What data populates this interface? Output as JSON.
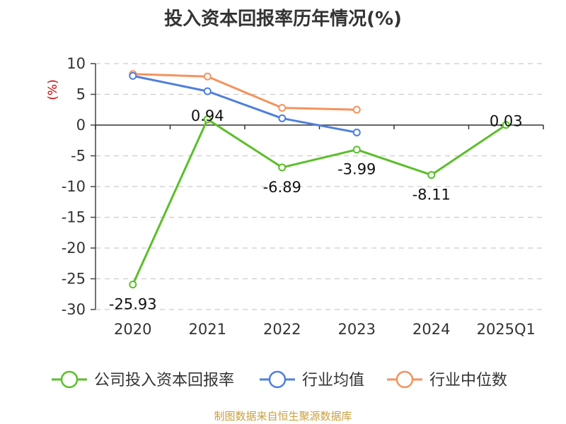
{
  "title": "投入资本回报率历年情况(%)",
  "source": "制图数据来自恒生聚源数据库",
  "chart_data": {
    "type": "line",
    "title": "投入资本回报率历年情况(%)",
    "ylabel": "(%)",
    "categories": [
      "2020",
      "2021",
      "2022",
      "2023",
      "2024",
      "2025Q1"
    ],
    "ylim": [
      -30,
      10
    ],
    "yticks": [
      10,
      5,
      0,
      -5,
      -10,
      -15,
      -20,
      -25,
      -30
    ],
    "grid": true,
    "legend_position": "bottom",
    "series": [
      {
        "name": "公司投入资本回报率",
        "color": "#5bbf2a",
        "values": [
          -25.93,
          0.94,
          -6.89,
          -3.99,
          -8.11,
          0.03
        ],
        "labels": [
          "-25.93",
          "0.94",
          "-6.89",
          "-3.99",
          "-8.11",
          "0.03"
        ]
      },
      {
        "name": "行业均值",
        "color": "#4f7fdc",
        "values": [
          8.0,
          5.5,
          1.1,
          -1.2,
          null,
          null
        ]
      },
      {
        "name": "行业中位数",
        "color": "#f5925e",
        "values": [
          8.3,
          7.9,
          2.8,
          2.5,
          null,
          null
        ]
      }
    ]
  }
}
